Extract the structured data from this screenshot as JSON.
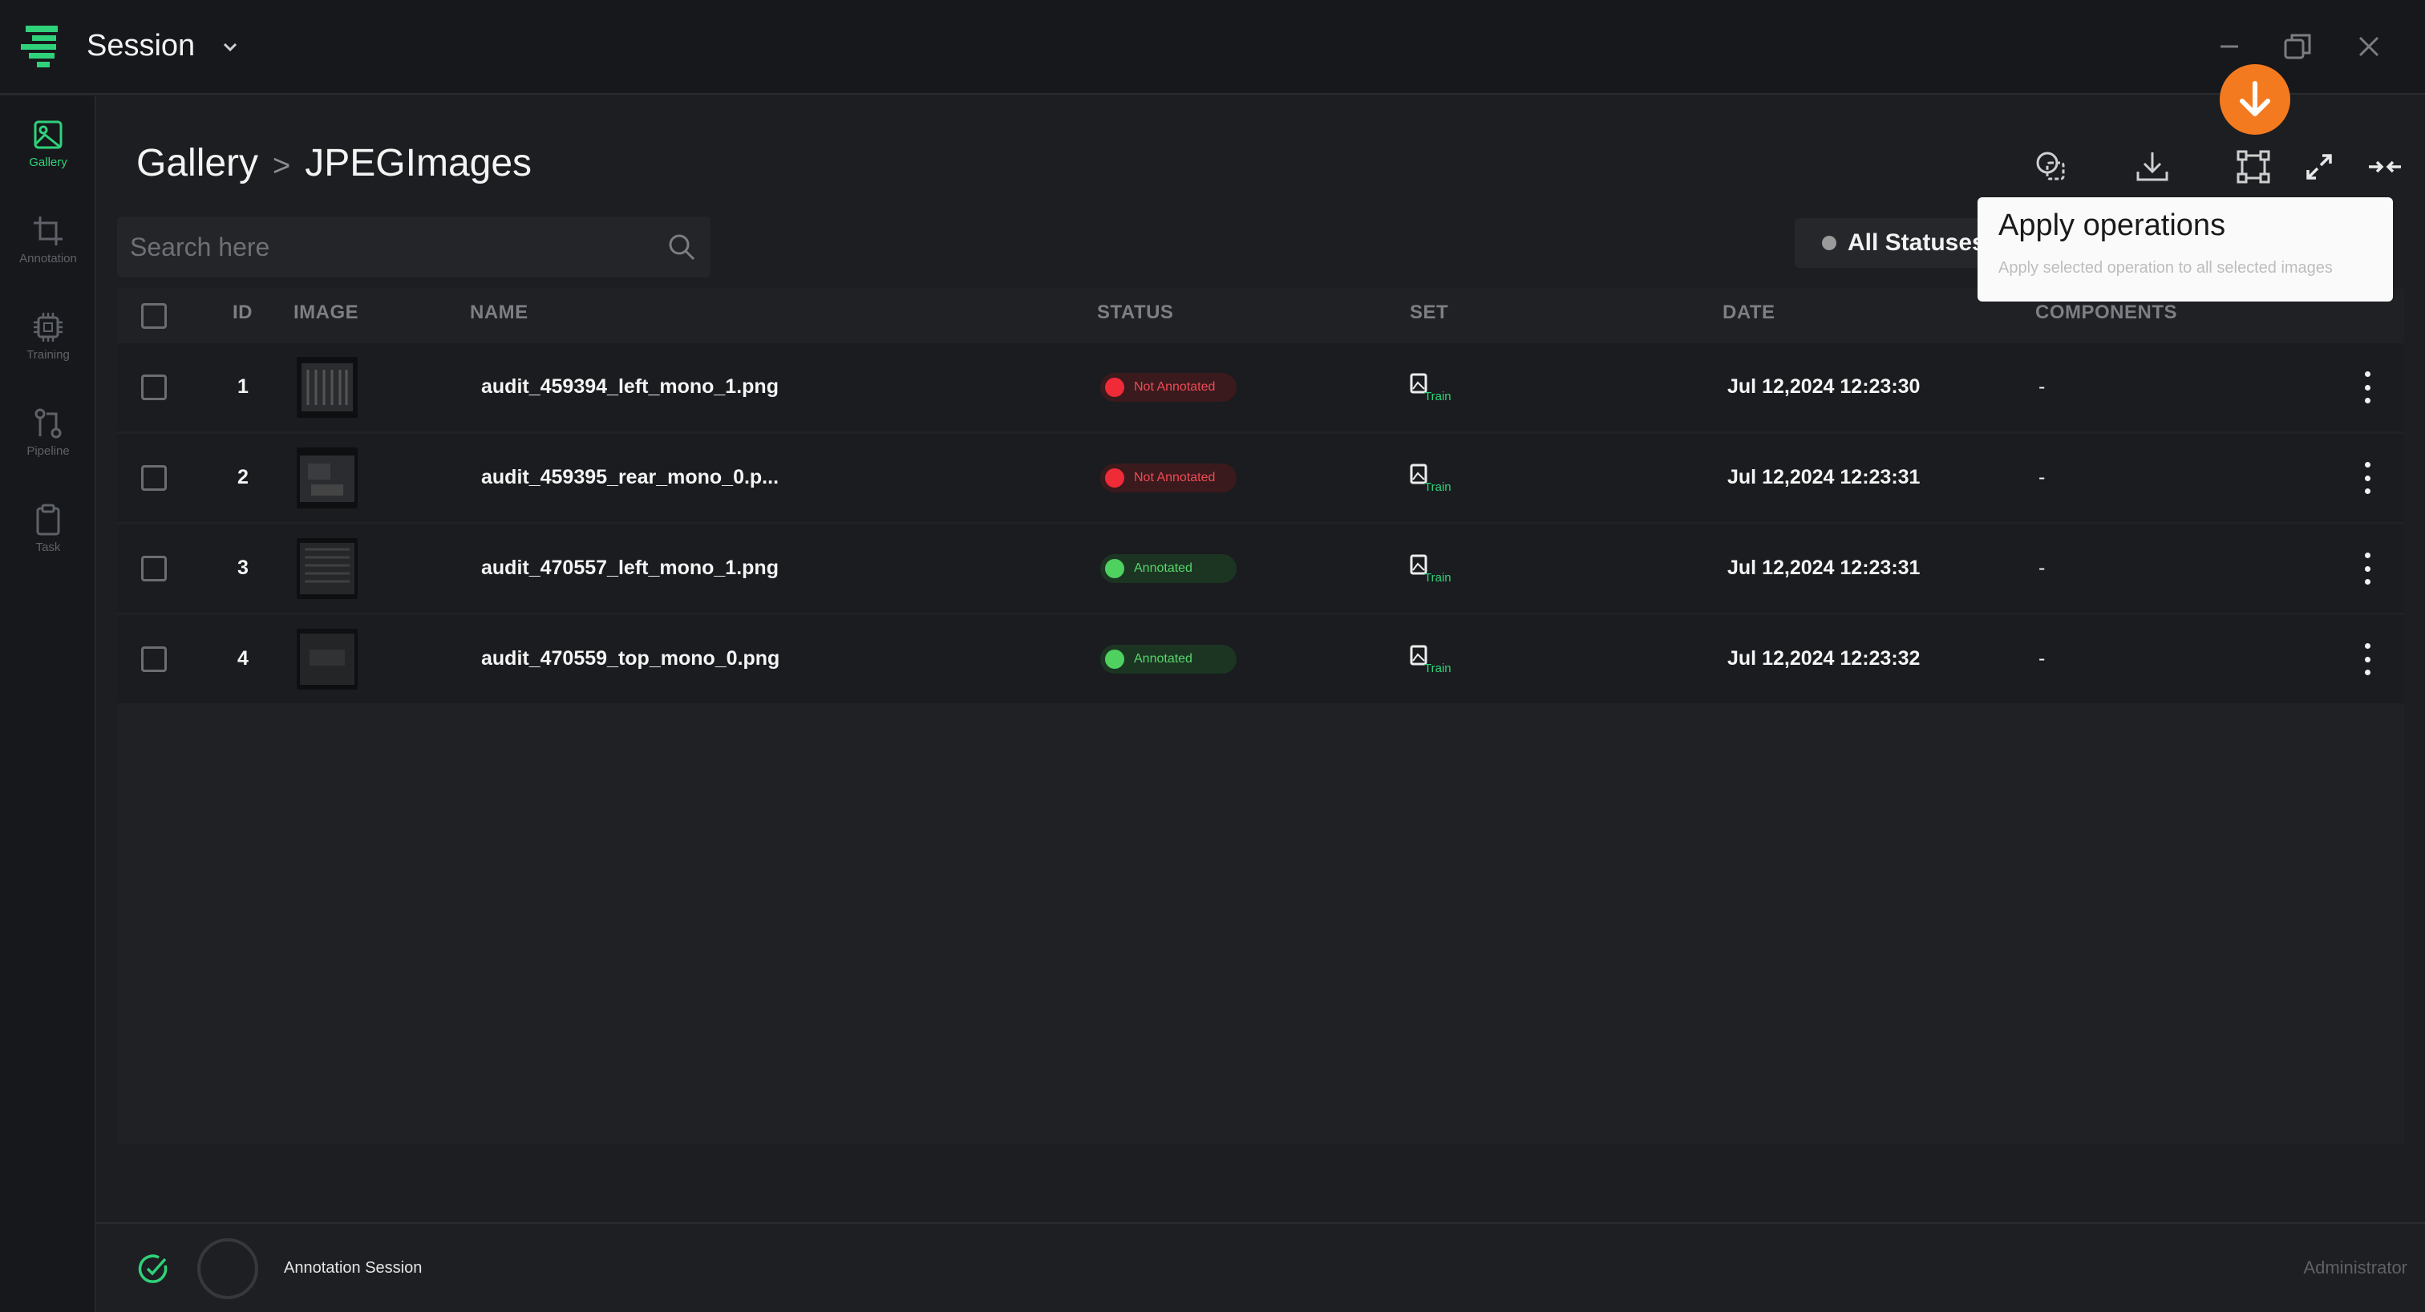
{
  "window": {
    "title": "Session"
  },
  "sidebar": {
    "items": [
      {
        "label": "Gallery",
        "icon": "image-icon",
        "active": true
      },
      {
        "label": "Annotation",
        "icon": "crop-icon",
        "active": false
      },
      {
        "label": "Training",
        "icon": "chip-icon",
        "active": false
      },
      {
        "label": "Pipeline",
        "icon": "pipeline-icon",
        "active": false
      },
      {
        "label": "Task",
        "icon": "clipboard-icon",
        "active": false
      }
    ]
  },
  "breadcrumb": {
    "root": "Gallery",
    "separator": ">",
    "current": "JPEGImages"
  },
  "search": {
    "placeholder": "Search here",
    "value": ""
  },
  "filter": {
    "status_label": "All Statuses"
  },
  "tooltip": {
    "title": "Apply operations",
    "subtitle": "Apply selected operation to all selected images"
  },
  "table": {
    "headers": {
      "id": "ID",
      "image": "IMAGE",
      "name": "NAME",
      "status": "STATUS",
      "set": "SET",
      "date": "DATE",
      "components": "COMPONENTS"
    },
    "rows": [
      {
        "id": "1",
        "name": "audit_459394_left_mono_1.png",
        "status": "Not Annotated",
        "status_type": "na",
        "set": "Train",
        "date": "Jul 12,2024 12:23:30",
        "components": "-"
      },
      {
        "id": "2",
        "name": "audit_459395_rear_mono_0.p...",
        "status": "Not Annotated",
        "status_type": "na",
        "set": "Train",
        "date": "Jul 12,2024 12:23:31",
        "components": "-"
      },
      {
        "id": "3",
        "name": "audit_470557_left_mono_1.png",
        "status": "Annotated",
        "status_type": "ok",
        "set": "Train",
        "date": "Jul 12,2024 12:23:31",
        "components": "-"
      },
      {
        "id": "4",
        "name": "audit_470559_top_mono_0.png",
        "status": "Annotated",
        "status_type": "ok",
        "set": "Train",
        "date": "Jul 12,2024 12:23:32",
        "components": "-"
      }
    ]
  },
  "footer": {
    "session": "Annotation Session",
    "role": "Administrator"
  },
  "colors": {
    "accent": "#2fd27a",
    "highlight": "#f47a20",
    "not_annotated": "#ef2b38",
    "annotated": "#4fd15f"
  }
}
